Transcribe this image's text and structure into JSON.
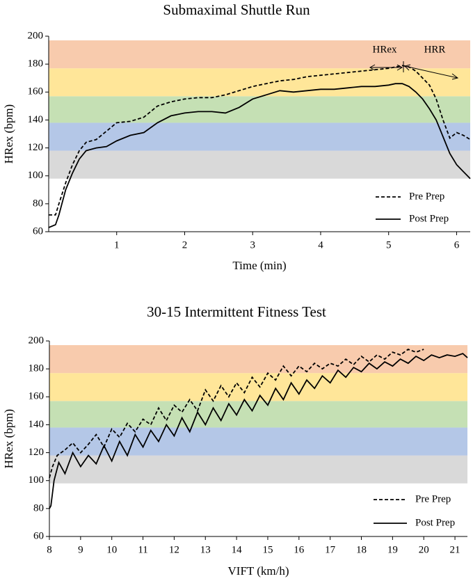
{
  "chart_data": [
    {
      "type": "line",
      "title": "Submaximal Shuttle Run",
      "x_label": "Time (min)",
      "y_label": "HRex (bpm)",
      "xlim": [
        0,
        6.2
      ],
      "xticks": [
        1,
        2,
        3,
        4,
        5,
        6
      ],
      "ylim": [
        60,
        200
      ],
      "yticks": [
        60,
        80,
        100,
        120,
        140,
        160,
        180,
        200
      ],
      "legend": "lower right",
      "annotations": [
        "HRex",
        "HRR"
      ],
      "bands": [
        {
          "range": [
            98,
            118
          ],
          "color": "#d9d9d9"
        },
        {
          "range": [
            118,
            138
          ],
          "color": "#b4c7e7"
        },
        {
          "range": [
            138,
            157
          ],
          "color": "#c5e0b4"
        },
        {
          "range": [
            157,
            177
          ],
          "color": "#ffe699"
        },
        {
          "range": [
            177,
            197
          ],
          "color": "#f8cbad"
        }
      ],
      "series": [
        {
          "name": "Pre Prep",
          "color": "#000000",
          "line_style": "dashed",
          "x": [
            0,
            0.1,
            0.15,
            0.25,
            0.35,
            0.45,
            0.55,
            0.7,
            0.85,
            1.0,
            1.2,
            1.4,
            1.6,
            1.8,
            2.0,
            2.2,
            2.4,
            2.6,
            2.8,
            3.0,
            3.2,
            3.4,
            3.6,
            3.8,
            4.0,
            4.2,
            4.4,
            4.6,
            4.8,
            5.0,
            5.1,
            5.2,
            5.3,
            5.4,
            5.5,
            5.6,
            5.7,
            5.8,
            5.9,
            6.0,
            6.1,
            6.2
          ],
          "values": [
            72,
            72,
            80,
            95,
            108,
            118,
            124,
            126,
            132,
            138,
            139,
            142,
            150,
            153,
            155,
            156,
            156,
            158,
            161,
            164,
            166,
            168,
            169,
            171,
            172,
            173,
            174,
            175,
            176,
            177,
            178,
            179,
            178,
            175,
            170,
            165,
            155,
            140,
            127,
            131,
            129,
            126
          ]
        },
        {
          "name": "Post Prep",
          "color": "#000000",
          "line_style": "solid",
          "x": [
            0,
            0.1,
            0.15,
            0.25,
            0.35,
            0.45,
            0.55,
            0.7,
            0.85,
            1.0,
            1.2,
            1.4,
            1.6,
            1.8,
            2.0,
            2.2,
            2.4,
            2.6,
            2.8,
            3.0,
            3.2,
            3.4,
            3.6,
            3.8,
            4.0,
            4.2,
            4.4,
            4.6,
            4.8,
            5.0,
            5.1,
            5.2,
            5.3,
            5.4,
            5.5,
            5.6,
            5.7,
            5.8,
            5.9,
            6.0,
            6.1,
            6.2
          ],
          "values": [
            63,
            65,
            72,
            90,
            102,
            112,
            118,
            120,
            121,
            125,
            129,
            131,
            138,
            143,
            145,
            146,
            146,
            145,
            149,
            155,
            158,
            161,
            160,
            161,
            162,
            162,
            163,
            164,
            164,
            165,
            166,
            166,
            164,
            160,
            155,
            148,
            140,
            128,
            116,
            108,
            103,
            98
          ]
        }
      ]
    },
    {
      "type": "line",
      "title": "30-15 Intermittent Fitness Test",
      "x_label": "VIFT (km/h)",
      "y_label": "HRex (bpm)",
      "xlim": [
        8,
        21.4
      ],
      "xticks": [
        8,
        9,
        10,
        11,
        12,
        13,
        14,
        15,
        16,
        17,
        18,
        19,
        20,
        21
      ],
      "ylim": [
        60,
        200
      ],
      "yticks": [
        60,
        80,
        100,
        120,
        140,
        160,
        180,
        200
      ],
      "legend": "lower right",
      "bands": [
        {
          "range": [
            98,
            118
          ],
          "color": "#d9d9d9"
        },
        {
          "range": [
            118,
            138
          ],
          "color": "#b4c7e7"
        },
        {
          "range": [
            138,
            157
          ],
          "color": "#c5e0b4"
        },
        {
          "range": [
            157,
            177
          ],
          "color": "#ffe699"
        },
        {
          "range": [
            177,
            197
          ],
          "color": "#f8cbad"
        }
      ],
      "series": [
        {
          "name": "Pre Prep",
          "color": "#000000",
          "line_style": "dashed",
          "x": [
            8,
            8.1,
            8.25,
            8.5,
            8.75,
            9,
            9.25,
            9.5,
            9.75,
            10,
            10.25,
            10.5,
            10.75,
            11,
            11.25,
            11.5,
            11.75,
            12,
            12.25,
            12.5,
            12.75,
            13,
            13.25,
            13.5,
            13.75,
            14,
            14.25,
            14.5,
            14.75,
            15,
            15.25,
            15.5,
            15.75,
            16,
            16.25,
            16.5,
            16.75,
            17,
            17.25,
            17.5,
            17.75,
            18,
            18.25,
            18.5,
            18.75,
            19,
            19.25,
            19.5,
            19.75,
            20
          ],
          "values": [
            102,
            110,
            118,
            122,
            127,
            120,
            126,
            133,
            124,
            137,
            131,
            141,
            135,
            144,
            140,
            152,
            143,
            154,
            149,
            158,
            150,
            165,
            157,
            168,
            160,
            170,
            163,
            174,
            167,
            177,
            172,
            182,
            175,
            182,
            178,
            184,
            180,
            184,
            182,
            187,
            183,
            189,
            185,
            190,
            187,
            192,
            190,
            194,
            192,
            194
          ]
        },
        {
          "name": "Post Prep",
          "color": "#000000",
          "line_style": "solid",
          "x": [
            8,
            8.05,
            8.15,
            8.3,
            8.5,
            8.75,
            9,
            9.25,
            9.5,
            9.75,
            10,
            10.25,
            10.5,
            10.75,
            11,
            11.25,
            11.5,
            11.75,
            12,
            12.25,
            12.5,
            12.75,
            13,
            13.25,
            13.5,
            13.75,
            14,
            14.25,
            14.5,
            14.75,
            15,
            15.25,
            15.5,
            15.75,
            16,
            16.25,
            16.5,
            16.75,
            17,
            17.25,
            17.5,
            17.75,
            18,
            18.25,
            18.5,
            18.75,
            19,
            19.25,
            19.5,
            19.75,
            20,
            20.25,
            20.5,
            20.75,
            21,
            21.25,
            21.4
          ],
          "values": [
            80,
            82,
            100,
            113,
            105,
            120,
            110,
            118,
            112,
            125,
            114,
            128,
            118,
            133,
            124,
            136,
            128,
            140,
            132,
            145,
            135,
            149,
            140,
            152,
            143,
            155,
            147,
            158,
            150,
            161,
            154,
            166,
            158,
            170,
            162,
            172,
            166,
            175,
            170,
            179,
            174,
            181,
            178,
            184,
            180,
            185,
            182,
            187,
            184,
            189,
            186,
            190,
            188,
            190,
            189,
            191,
            188
          ]
        }
      ]
    }
  ]
}
